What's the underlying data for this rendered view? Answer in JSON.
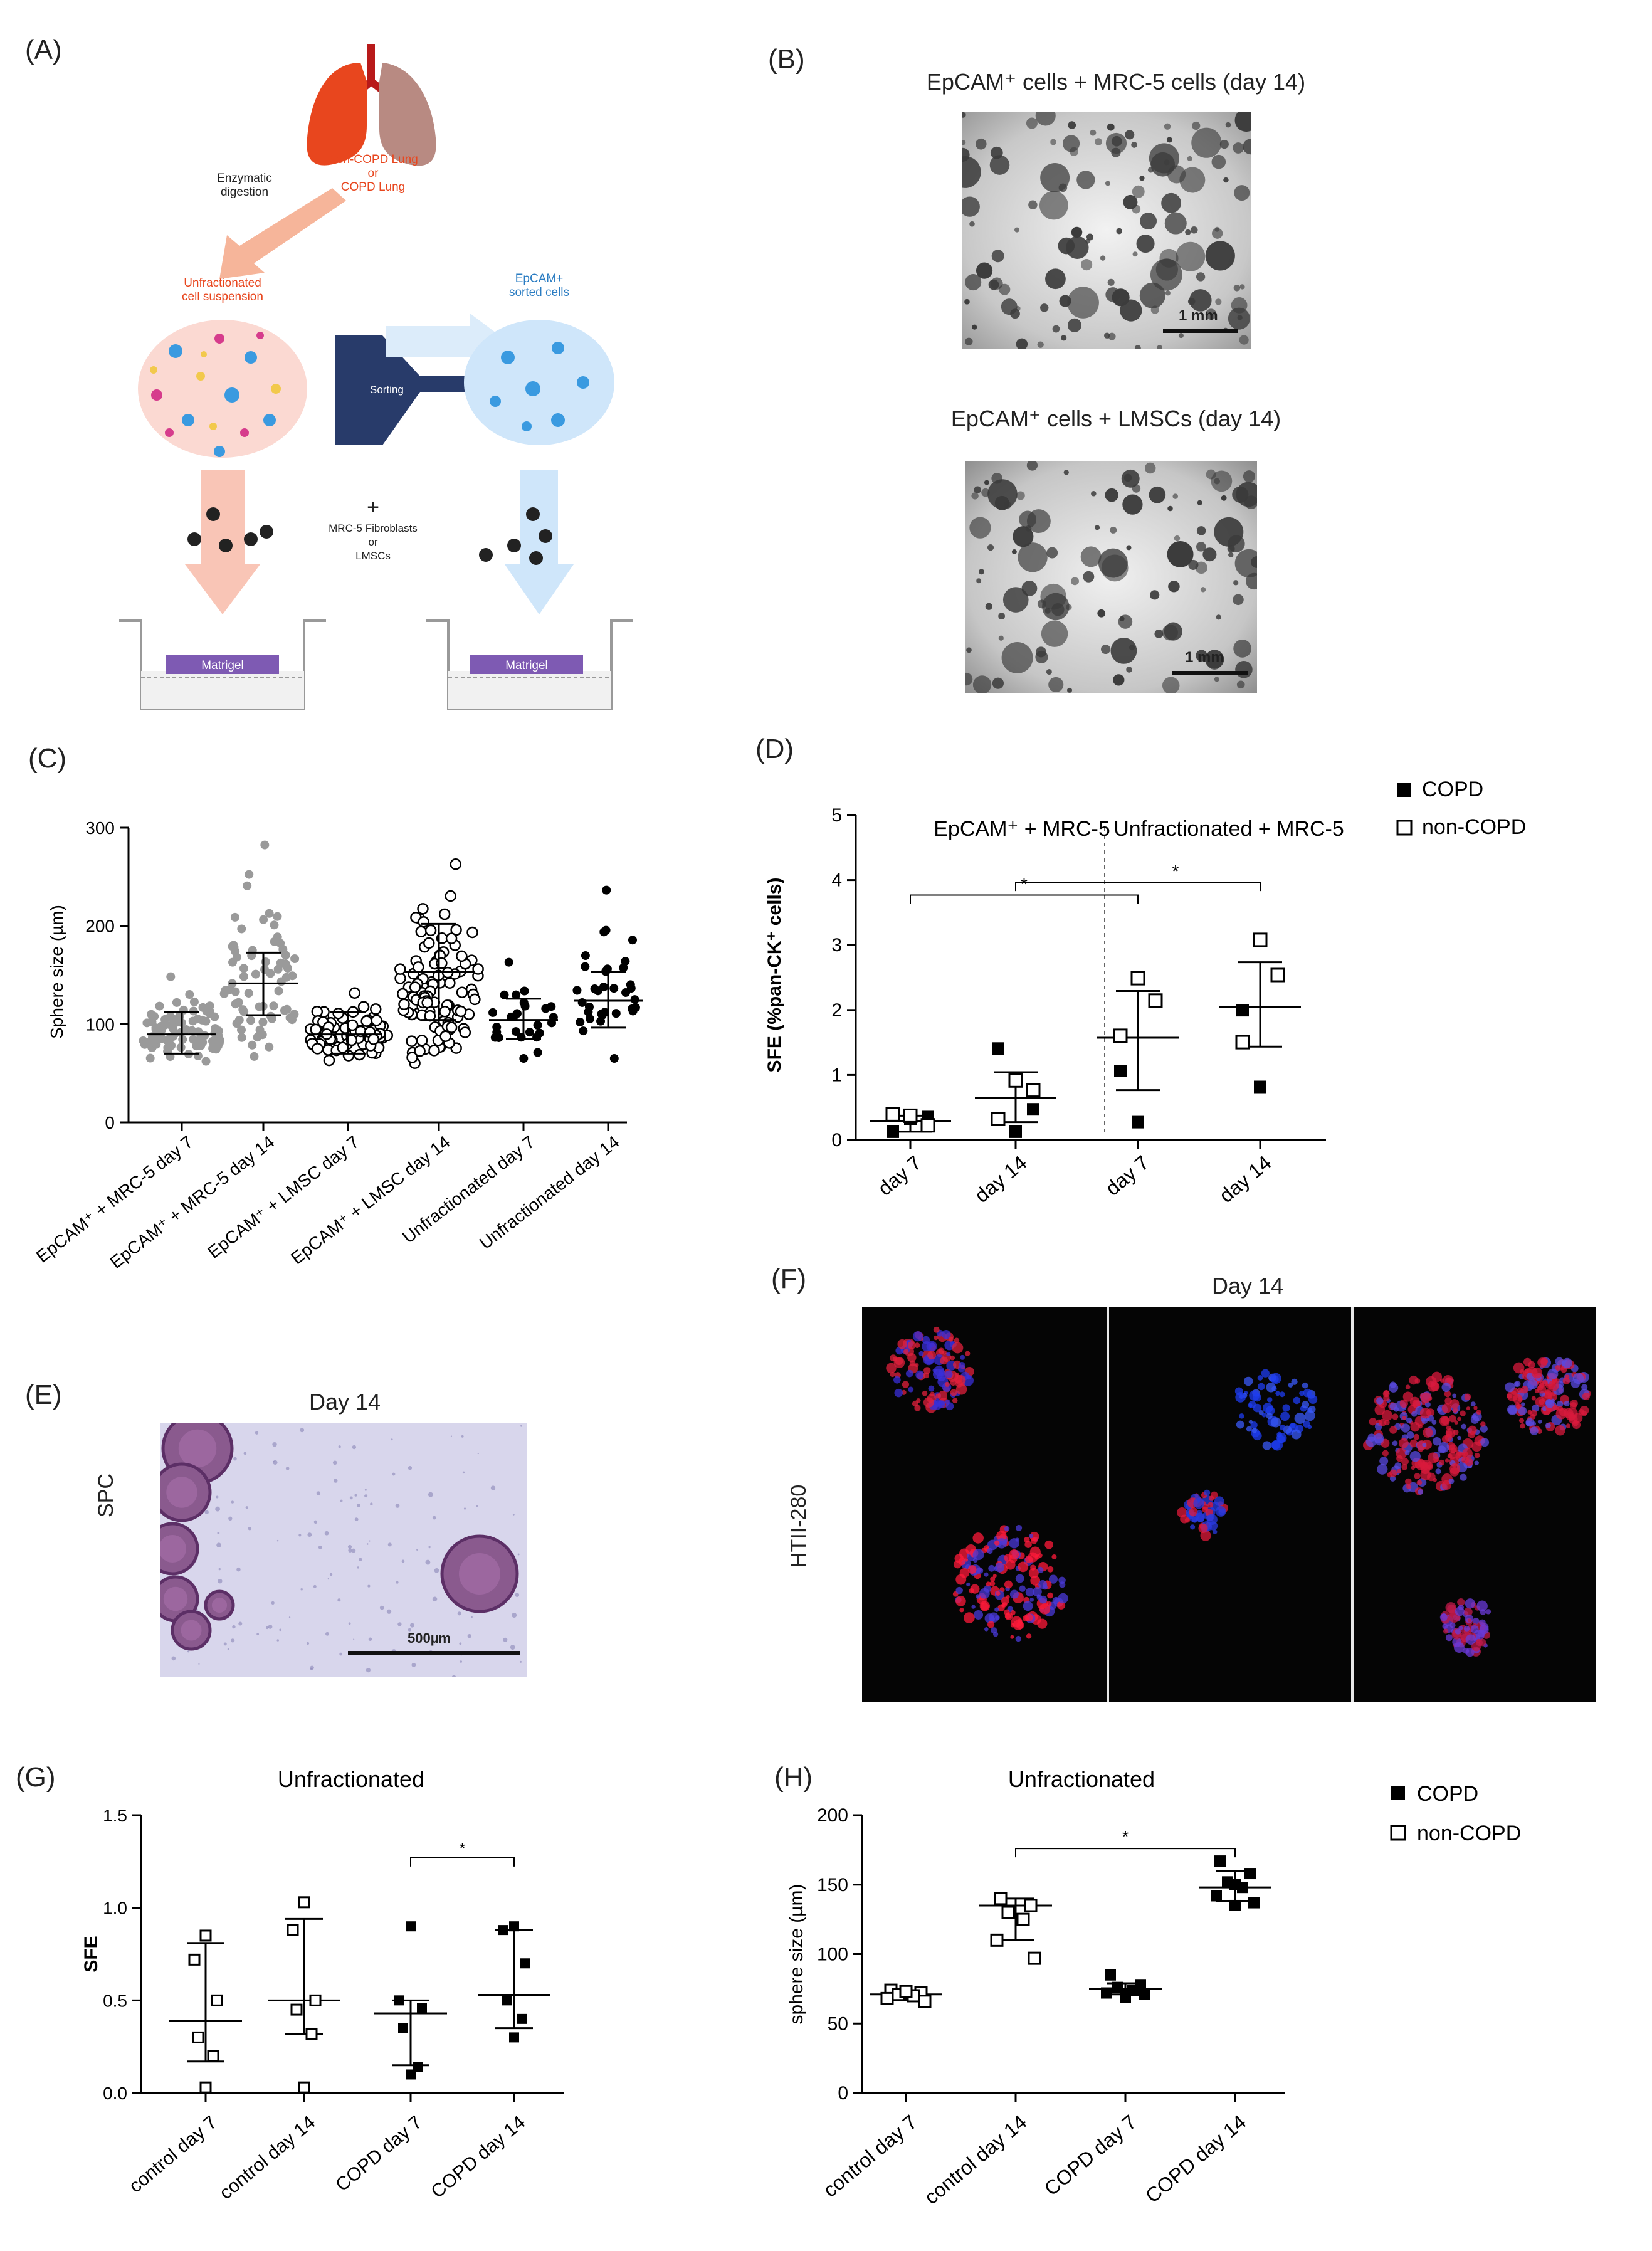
{
  "panels": {
    "A": {
      "label": "(A)",
      "source": "Non-COPD Lung",
      "source_or": "or",
      "source2": "COPD Lung",
      "digest1": "Enzymatic",
      "digest2": "digestion",
      "unfrac1": "Unfractionated",
      "unfrac2": "cell suspension",
      "sorted1": "EpCAM+",
      "sorted2": "sorted cells",
      "sorting": "Sorting",
      "plus": "+",
      "fib1": "MRC-5 Fibroblasts",
      "fib_or": "or",
      "fib2": "LMSCs",
      "matrigel_left": "Matrigel",
      "matrigel_right": "Matrigel"
    },
    "B": {
      "label": "(B)",
      "title_top": "EpCAM⁺ cells + MRC-5 cells (day 14)",
      "title_bottom": "EpCAM⁺ cells + LMSCs (day 14)",
      "scale_top": "1 mm",
      "scale_bottom": "1 mm"
    },
    "C": {
      "label": "(C)"
    },
    "D": {
      "label": "(D)"
    },
    "E": {
      "label": "(E)",
      "title": "Day 14",
      "side": "SPC",
      "scale": "500µm"
    },
    "F": {
      "label": "(F)",
      "title": "Day 14",
      "side": "HTII-280"
    },
    "G": {
      "label": "(G)"
    },
    "H": {
      "label": "(H)"
    }
  },
  "chart_data": [
    {
      "panel": "C",
      "type": "scatter",
      "ylabel": "Sphere size (µm)",
      "ylim": [
        0,
        300
      ],
      "yticks": [
        0,
        100,
        200,
        300
      ],
      "categories": [
        "EpCAM⁺ + MRC-5 day 7",
        "EpCAM⁺ + MRC-5 day 14",
        "EpCAM⁺ + LMSC day 7",
        "EpCAM⁺ + LMSC day 14",
        "Unfractionated day 7",
        "Unfractionated day 14"
      ],
      "groups": [
        {
          "category": "EpCAM⁺ + MRC-5 day 7",
          "marker": "filled-circle-grey",
          "mean": 85,
          "sd_low": 65,
          "sd_high": 108,
          "n": 90,
          "min": 57,
          "max": 145
        },
        {
          "category": "EpCAM⁺ + MRC-5 day 14",
          "marker": "filled-circle-grey",
          "mean": 138,
          "sd_low": 105,
          "sd_high": 170,
          "n": 70,
          "min": 62,
          "max": 282
        },
        {
          "category": "EpCAM⁺ + LMSC day 7",
          "marker": "open-circle",
          "mean": 85,
          "sd_low": 65,
          "sd_high": 108,
          "n": 80,
          "min": 58,
          "max": 128
        },
        {
          "category": "EpCAM⁺ + LMSC day 14",
          "marker": "open-circle",
          "mean": 150,
          "sd_low": 100,
          "sd_high": 200,
          "n": 100,
          "min": 55,
          "max": 262
        },
        {
          "category": "Unfractionated day 7",
          "marker": "filled-circle-black",
          "mean": 100,
          "sd_low": 80,
          "sd_high": 122,
          "n": 26,
          "min": 60,
          "max": 160
        },
        {
          "category": "Unfractionated day 14",
          "marker": "filled-circle-black",
          "mean": 120,
          "sd_low": 92,
          "sd_high": 150,
          "n": 34,
          "min": 60,
          "max": 235
        }
      ]
    },
    {
      "panel": "D",
      "type": "scatter",
      "ylabel": "SFE (%pan-CK⁺ cells)",
      "ylim": [
        0,
        5
      ],
      "yticks": [
        0,
        1,
        2,
        3,
        4,
        5
      ],
      "categories": [
        "day 7",
        "day 14",
        "day 7",
        "day 14"
      ],
      "section_labels": [
        "EpCAM⁺ + MRC-5",
        "Unfractionated + MRC-5"
      ],
      "legend": [
        "COPD",
        "non-COPD"
      ],
      "legend_position": "top-right",
      "significance": [
        "*",
        "*"
      ],
      "groups": [
        {
          "mean": 0.22,
          "sd": [
            0.05,
            0.3
          ],
          "copd": [
            0.05,
            0.25,
            0.28
          ],
          "non_copd": [
            0.3,
            0.15,
            0.32
          ]
        },
        {
          "mean": 0.58,
          "sd": [
            0.2,
            0.98
          ],
          "copd": [
            1.35,
            0.05,
            0.4
          ],
          "non_copd": [
            0.85,
            0.7,
            0.25
          ]
        },
        {
          "mean": 1.52,
          "sd": [
            0.7,
            2.25
          ],
          "copd": [
            1.0,
            0.2
          ],
          "non_copd": [
            2.45,
            2.1,
            1.55
          ]
        },
        {
          "mean": 2.0,
          "sd": [
            1.38,
            2.7
          ],
          "copd": [
            1.95,
            0.75
          ],
          "non_copd": [
            3.05,
            2.5,
            1.45
          ]
        }
      ]
    },
    {
      "panel": "G",
      "type": "scatter",
      "title": "Unfractionated",
      "ylabel": "SFE",
      "ylim": [
        0,
        1.5
      ],
      "yticks": [
        0.0,
        0.5,
        1.0,
        1.5
      ],
      "categories": [
        "control day 7",
        "control day 14",
        "COPD  day 7",
        "COPD  day 14"
      ],
      "significance": [
        "*"
      ],
      "groups": [
        {
          "marker": "open-square",
          "median": 0.39,
          "range": [
            0.17,
            0.81
          ],
          "points": [
            0.85,
            0.72,
            0.5,
            0.3,
            0.2,
            0.03
          ]
        },
        {
          "marker": "open-square",
          "median": 0.5,
          "range": [
            0.32,
            0.94
          ],
          "points": [
            1.03,
            0.88,
            0.5,
            0.45,
            0.32,
            0.03
          ]
        },
        {
          "marker": "filled-square",
          "median": 0.43,
          "range": [
            0.15,
            0.5
          ],
          "points": [
            0.9,
            0.5,
            0.46,
            0.35,
            0.14,
            0.1
          ]
        },
        {
          "marker": "filled-square",
          "median": 0.53,
          "range": [
            0.35,
            0.88
          ],
          "points": [
            0.9,
            0.88,
            0.7,
            0.5,
            0.4,
            0.3
          ]
        }
      ]
    },
    {
      "panel": "H",
      "type": "scatter",
      "title": "Unfractionated",
      "ylabel": "sphere size (µm)",
      "ylim": [
        0,
        200
      ],
      "yticks": [
        0,
        50,
        100,
        150,
        200
      ],
      "categories": [
        "control day 7",
        "control day 14",
        "COPD  day 7",
        "COPD  day 14"
      ],
      "legend": [
        "COPD",
        "non-COPD"
      ],
      "legend_position": "top-right",
      "significance": [
        "*"
      ],
      "groups": [
        {
          "marker": "open-square",
          "median": 71,
          "range": [
            67,
            74
          ],
          "points": [
            74,
            72,
            71,
            70,
            68,
            66,
            73
          ]
        },
        {
          "marker": "open-square",
          "median": 135,
          "range": [
            110,
            140
          ],
          "points": [
            140,
            135,
            130,
            125,
            110,
            97
          ]
        },
        {
          "marker": "filled-square",
          "median": 75,
          "range": [
            71,
            79
          ],
          "points": [
            85,
            78,
            76,
            74,
            72,
            71,
            70,
            69
          ]
        },
        {
          "marker": "filled-square",
          "median": 148,
          "range": [
            138,
            160
          ],
          "points": [
            167,
            158,
            152,
            148,
            142,
            137,
            135,
            150
          ]
        }
      ]
    }
  ]
}
